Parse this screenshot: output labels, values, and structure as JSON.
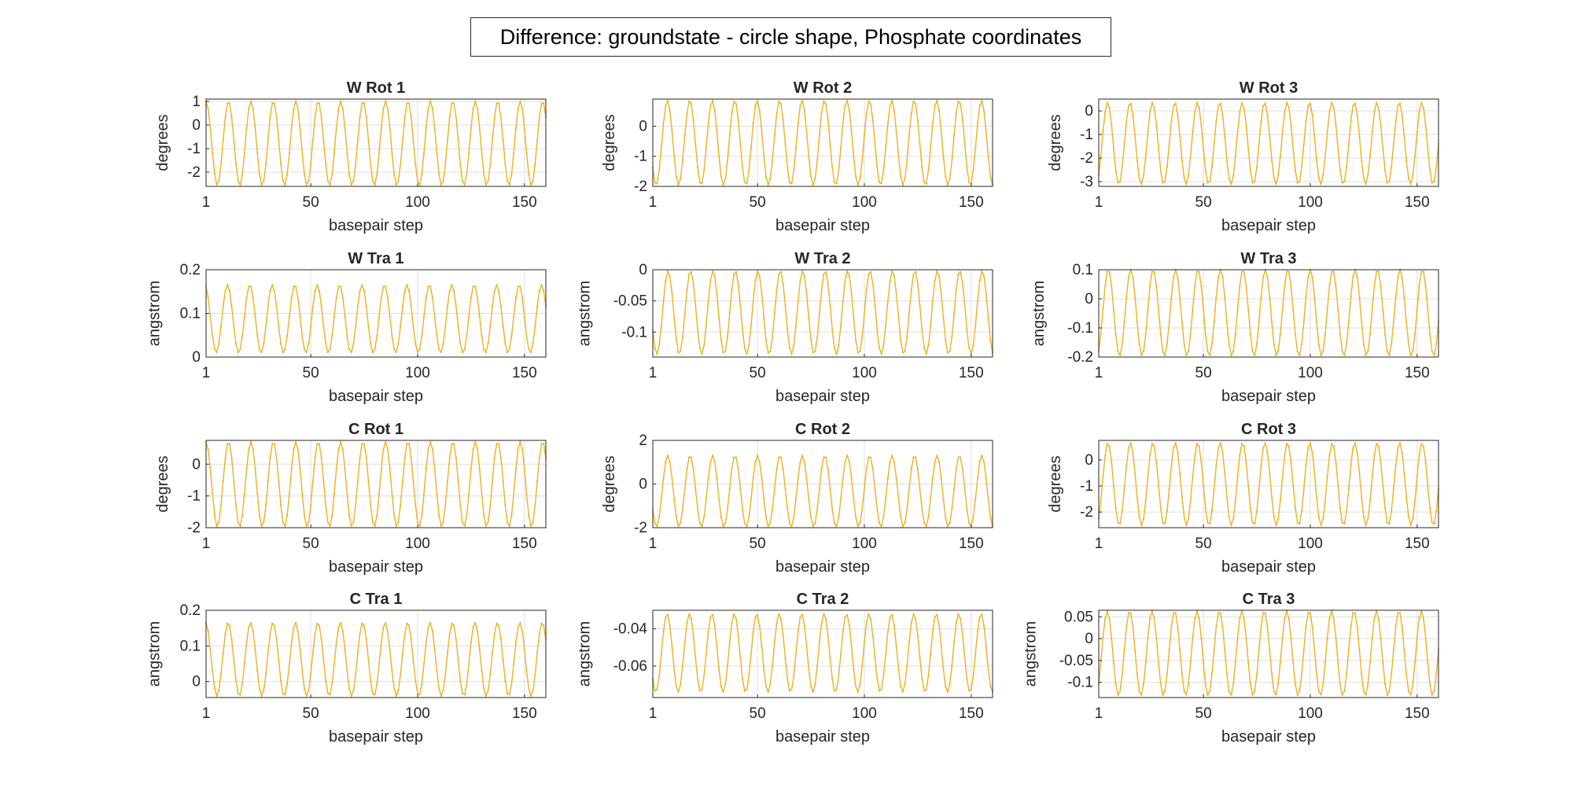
{
  "figure": {
    "suptitle": "Difference: groundstate - circle shape, Phosphate coordinates",
    "line_color": "#EDB120",
    "grid_color": "#DFDFDF"
  },
  "chart_data": [
    {
      "type": "line",
      "title": "W Rot 1",
      "xlabel": "basepair step",
      "ylabel": "degrees",
      "xlim": [
        1,
        160
      ],
      "ylim": [
        -2.6,
        1.1
      ],
      "xticks": [
        1,
        50,
        100,
        150
      ],
      "yticks": [
        1,
        0,
        -1,
        -2
      ],
      "period": 10.5,
      "phase": 0.0,
      "amplitude": 1.75,
      "offset": -0.72,
      "grid": true,
      "series": [
        {
          "x": [
            1,
            160
          ],
          "min": -2.55,
          "max": 1.0
        }
      ]
    },
    {
      "type": "line",
      "title": "W Rot 2",
      "xlabel": "basepair step",
      "ylabel": "degrees",
      "xlim": [
        1,
        160
      ],
      "ylim": [
        -2.0,
        0.9
      ],
      "xticks": [
        1,
        50,
        100,
        150
      ],
      "yticks": [
        0,
        -1,
        -2
      ],
      "period": 10.5,
      "phase": 2.2,
      "amplitude": 1.4,
      "offset": -0.55,
      "grid": true,
      "series": [
        {
          "x": [
            1,
            160
          ],
          "min": -1.95,
          "max": 0.85
        }
      ]
    },
    {
      "type": "line",
      "title": "W Rot 3",
      "xlabel": "basepair step",
      "ylabel": "degrees",
      "xlim": [
        1,
        160
      ],
      "ylim": [
        -3.2,
        0.5
      ],
      "xticks": [
        1,
        50,
        100,
        150
      ],
      "yticks": [
        0,
        -1,
        -2,
        -3
      ],
      "period": 10.5,
      "phase": 3.8,
      "amplitude": 1.7,
      "offset": -1.4,
      "grid": true,
      "series": [
        {
          "x": [
            1,
            160
          ],
          "min": -3.1,
          "max": 0.35
        }
      ]
    },
    {
      "type": "line",
      "title": "W Tra 1",
      "xlabel": "basepair step",
      "ylabel": "angstrom",
      "xlim": [
        1,
        160
      ],
      "ylim": [
        0,
        0.2
      ],
      "xticks": [
        1,
        50,
        100,
        150
      ],
      "yticks": [
        0.2,
        0.1,
        0
      ],
      "period": 10.5,
      "phase": 0.3,
      "amplitude": 0.075,
      "offset": 0.09,
      "grid": true,
      "series": [
        {
          "x": [
            1,
            160
          ],
          "min": 0.01,
          "max": 0.165
        }
      ]
    },
    {
      "type": "line",
      "title": "W Tra 2",
      "xlabel": "basepair step",
      "ylabel": "angstrom",
      "xlim": [
        1,
        160
      ],
      "ylim": [
        -0.14,
        0
      ],
      "xticks": [
        1,
        50,
        100,
        150
      ],
      "yticks": [
        0,
        -0.05,
        -0.1
      ],
      "period": 10.5,
      "phase": 2.0,
      "amplitude": 0.065,
      "offset": -0.068,
      "grid": true,
      "series": [
        {
          "x": [
            1,
            160
          ],
          "min": -0.135,
          "max": -0.002
        }
      ]
    },
    {
      "type": "line",
      "title": "W Tra 3",
      "xlabel": "basepair step",
      "ylabel": "angstrom",
      "xlim": [
        1,
        160
      ],
      "ylim": [
        -0.2,
        0.1
      ],
      "xticks": [
        1,
        50,
        100,
        150
      ],
      "yticks": [
        0.1,
        0,
        -0.1,
        -0.2
      ],
      "period": 10.5,
      "phase": 3.6,
      "amplitude": 0.145,
      "offset": -0.048,
      "grid": true,
      "series": [
        {
          "x": [
            1,
            160
          ],
          "min": -0.195,
          "max": 0.1
        }
      ]
    },
    {
      "type": "line",
      "title": "C Rot 1",
      "xlabel": "basepair step",
      "ylabel": "degrees",
      "xlim": [
        1,
        160
      ],
      "ylim": [
        -2.0,
        0.75
      ],
      "xticks": [
        1,
        50,
        100,
        150
      ],
      "yticks": [
        0,
        -1,
        -2
      ],
      "period": 10.5,
      "phase": 0.0,
      "amplitude": 1.33,
      "offset": -0.63,
      "grid": true,
      "series": [
        {
          "x": [
            1,
            160
          ],
          "min": -1.96,
          "max": 0.7
        }
      ]
    },
    {
      "type": "line",
      "title": "C Rot 2",
      "xlabel": "basepair step",
      "ylabel": "degrees",
      "xlim": [
        1,
        160
      ],
      "ylim": [
        -2.0,
        2.0
      ],
      "xticks": [
        1,
        50,
        100,
        150
      ],
      "yticks": [
        2,
        0,
        -2
      ],
      "period": 10.5,
      "phase": 2.1,
      "amplitude": 1.6,
      "offset": -0.35,
      "grid": true,
      "series": [
        {
          "x": [
            1,
            160
          ],
          "min": -1.95,
          "max": 1.3
        }
      ]
    },
    {
      "type": "line",
      "title": "C Rot 3",
      "xlabel": "basepair step",
      "ylabel": "degrees",
      "xlim": [
        1,
        160
      ],
      "ylim": [
        -2.6,
        0.75
      ],
      "xticks": [
        1,
        50,
        100,
        150
      ],
      "yticks": [
        0,
        -1,
        -2
      ],
      "period": 10.5,
      "phase": 3.7,
      "amplitude": 1.6,
      "offset": -0.92,
      "grid": true,
      "series": [
        {
          "x": [
            1,
            160
          ],
          "min": -2.5,
          "max": 0.65
        }
      ]
    },
    {
      "type": "line",
      "title": "C Tra 1",
      "xlabel": "basepair step",
      "ylabel": "angstrom",
      "xlim": [
        1,
        160
      ],
      "ylim": [
        -0.045,
        0.2
      ],
      "xticks": [
        1,
        50,
        100,
        150
      ],
      "yticks": [
        0.2,
        0.1,
        0
      ],
      "period": 10.5,
      "phase": 0.1,
      "amplitude": 0.105,
      "offset": 0.06,
      "grid": true,
      "series": [
        {
          "x": [
            1,
            160
          ],
          "min": -0.04,
          "max": 0.165
        }
      ]
    },
    {
      "type": "line",
      "title": "C Tra 2",
      "xlabel": "basepair step",
      "ylabel": "angstrom",
      "xlim": [
        1,
        160
      ],
      "ylim": [
        -0.077,
        -0.03
      ],
      "xticks": [
        1,
        50,
        100,
        150
      ],
      "yticks": [
        -0.04,
        -0.06
      ],
      "period": 10.5,
      "phase": 2.3,
      "amplitude": 0.021,
      "offset": -0.052,
      "grid": true,
      "series": [
        {
          "x": [
            1,
            160
          ],
          "min": -0.074,
          "max": -0.032
        }
      ]
    },
    {
      "type": "line",
      "title": "C Tra 3",
      "xlabel": "basepair step",
      "ylabel": "angstrom",
      "xlim": [
        1,
        160
      ],
      "ylim": [
        -0.135,
        0.065
      ],
      "xticks": [
        1,
        50,
        100,
        150
      ],
      "yticks": [
        0.05,
        0,
        -0.05,
        -0.1
      ],
      "period": 10.5,
      "phase": 3.9,
      "amplitude": 0.098,
      "offset": -0.035,
      "grid": true,
      "series": [
        {
          "x": [
            1,
            160
          ],
          "min": -0.13,
          "max": 0.063
        }
      ]
    }
  ]
}
